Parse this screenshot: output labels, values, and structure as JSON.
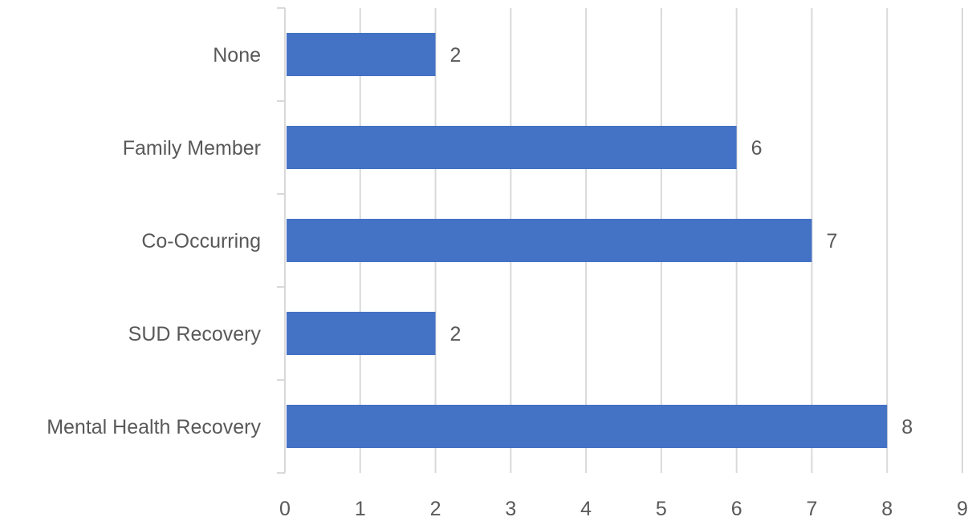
{
  "chart_data": {
    "type": "bar",
    "orientation": "horizontal",
    "categories": [
      "None",
      "Family Member",
      "Co-Occurring",
      "SUD Recovery",
      "Mental Health Recovery"
    ],
    "values": [
      2,
      6,
      7,
      2,
      8
    ],
    "data_labels": [
      "2",
      "6",
      "7",
      "2",
      "8"
    ],
    "x_ticks": [
      "0",
      "1",
      "2",
      "3",
      "4",
      "5",
      "6",
      "7",
      "8",
      "9"
    ],
    "xlim": [
      0,
      9
    ],
    "title": "",
    "xlabel": "",
    "ylabel": "",
    "grid": "vertical",
    "legend": "none",
    "colors": {
      "bar": "#4472C4",
      "grid": "#D9D9D9",
      "text": "#595959"
    }
  }
}
